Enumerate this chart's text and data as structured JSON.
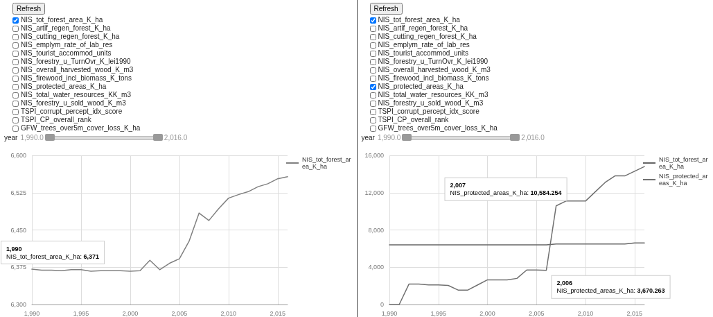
{
  "chart_data": [
    {
      "type": "line",
      "x": [
        1990,
        1991,
        1992,
        1993,
        1994,
        1995,
        1996,
        1997,
        1998,
        1999,
        2000,
        2001,
        2002,
        2003,
        2004,
        2005,
        2006,
        2007,
        2008,
        2009,
        2010,
        2011,
        2012,
        2013,
        2014,
        2015,
        2016
      ],
      "series": [
        {
          "name": "NIS_tot_forest_area_K_ha",
          "color": "#808080",
          "values": [
            6371,
            6369,
            6369,
            6368,
            6370,
            6370,
            6367,
            6368,
            6368,
            6368,
            6367,
            6368,
            6389,
            6370,
            6383,
            6392,
            6428,
            6484,
            6469,
            6493,
            6514,
            6521,
            6527,
            6537,
            6543,
            6553,
            6557
          ]
        }
      ],
      "xlim": [
        1990,
        2016
      ],
      "xticks": [
        {
          "value": 1990,
          "label": "1,990"
        },
        {
          "value": 1995,
          "label": "1,995"
        },
        {
          "value": 2000,
          "label": "2,000"
        },
        {
          "value": 2005,
          "label": "2,005"
        },
        {
          "value": 2010,
          "label": "2,010"
        },
        {
          "value": 2015,
          "label": "2,015"
        }
      ],
      "ylim": [
        6300,
        6600
      ],
      "yticks": [
        {
          "value": 6300,
          "label": "6,300"
        },
        {
          "value": 6375,
          "label": "6,375"
        },
        {
          "value": 6450,
          "label": "6,450"
        },
        {
          "value": 6525,
          "label": "6,525"
        },
        {
          "value": 6600,
          "label": "6,600"
        }
      ],
      "grid": true,
      "legend": "right",
      "line_style": "solid",
      "annotations": [
        "Refresh",
        "NIS_tot_forest_area_K_ha",
        "NIS_artif_regen_forest_K_ha",
        "NIS_cutting_regen_forest_K_ha",
        "NIS_emplym_rate_of_lab_res",
        "NIS_tourist_accommod_units",
        "NIS_forestry_u_TurnOvr_K_lei1990",
        "NIS_overall_harvested_wood_K_m3",
        "NIS_firewood_incl_biomass_K_tons",
        "NIS_protected_areas_K_ha",
        "NIS_total_water_resources_KK_m3",
        "NIS_forestry_u_sold_wood_K_m3",
        "TSPI_corrupt_percept_idx_score",
        "TSPI_CP_overall_rank",
        "GFW_trees_over5m_cover_loss_K_ha",
        "year",
        "1,990.0",
        "2,016.0",
        {
          "text": "1,990\nNIS_tot_forest_area_K_ha: 6,371",
          "x": 1990,
          "y": 6371
        }
      ]
    },
    {
      "type": "line",
      "x": [
        1990,
        1991,
        1992,
        1993,
        1994,
        1995,
        1996,
        1997,
        1998,
        1999,
        2000,
        2001,
        2002,
        2003,
        2004,
        2005,
        2006,
        2007,
        2008,
        2009,
        2010,
        2011,
        2012,
        2013,
        2014,
        2015,
        2016
      ],
      "series": [
        {
          "name": "NIS_tot_forest_area_K_ha",
          "color": "#666666",
          "values": [
            6400,
            6400,
            6400,
            6400,
            6400,
            6400,
            6400,
            6400,
            6400,
            6400,
            6400,
            6400,
            6400,
            6400,
            6400,
            6400,
            6400,
            6500,
            6500,
            6500,
            6500,
            6500,
            6500,
            6500,
            6500,
            6600,
            6600
          ]
        },
        {
          "name": "NIS_protected_areas_K_ha",
          "color": "#707070",
          "values": [
            0,
            0,
            2200,
            2200,
            2100,
            2100,
            2050,
            1550,
            1550,
            2100,
            2650,
            2650,
            2650,
            2800,
            3700,
            3700,
            3670.263,
            10584.254,
            11100,
            11100,
            11100,
            12100,
            13100,
            13800,
            13800,
            14300,
            14800
          ]
        }
      ],
      "xlim": [
        1990,
        2016
      ],
      "xticks": [
        {
          "value": 1990,
          "label": "1,990"
        },
        {
          "value": 1995,
          "label": "1,995"
        },
        {
          "value": 2000,
          "label": "2,000"
        },
        {
          "value": 2005,
          "label": "2,005"
        },
        {
          "value": 2010,
          "label": "2,010"
        },
        {
          "value": 2015,
          "label": "2,015"
        }
      ],
      "ylim": [
        0,
        16000
      ],
      "yticks": [
        0,
        {
          "value": 4000,
          "label": "4,000"
        },
        {
          "value": 8000,
          "label": "8,000"
        },
        {
          "value": 12000,
          "label": "12,000"
        },
        {
          "value": 16000,
          "label": "16,000"
        }
      ],
      "grid": true,
      "legend": "right",
      "line_style": "solid",
      "annotations": [
        "Refresh",
        "NIS_tot_forest_area_K_ha",
        "NIS_artif_regen_forest_K_ha",
        "NIS_cutting_regen_forest_K_ha",
        "NIS_emplym_rate_of_lab_res",
        "NIS_tourist_accommod_units",
        "NIS_forestry_u_TurnOvr_K_lei1990",
        "NIS_overall_harvested_wood_K_m3",
        "NIS_firewood_incl_biomass_K_tons",
        "NIS_protected_areas_K_ha",
        "NIS_total_water_resources_KK_m3",
        "NIS_forestry_u_sold_wood_K_m3",
        "TSPI_corrupt_percept_idx_score",
        "TSPI_CP_overall_rank",
        "GFW_trees_over5m_cover_loss_K_ha",
        "year",
        "1,990.0",
        "2,016.0",
        {
          "text": "2,007\nNIS_protected_areas_K_ha: 10,584.254",
          "x": 2007,
          "y": 10584.254
        },
        {
          "text": "2,006\nNIS_protected_areas_K_ha: 3,670.263",
          "x": 2006,
          "y": 3670.263
        }
      ]
    }
  ]
}
